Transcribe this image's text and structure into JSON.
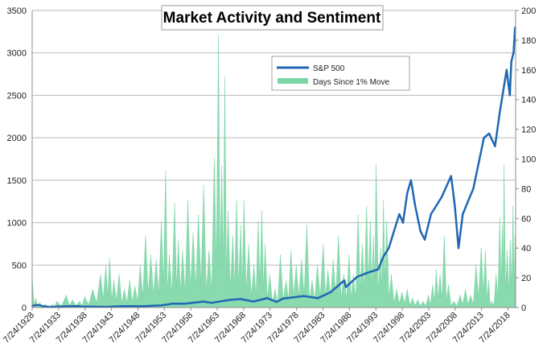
{
  "colors": {
    "sp500": "#1f67b4",
    "days_since": "#7dd6a6",
    "grid": "#b9b9b9",
    "axis": "#8c8c8c"
  },
  "chart_data": {
    "type": "line",
    "title": "Market Activity and Sentiment",
    "xlabel": "",
    "ylabel": "",
    "y2label": "",
    "x_range": [
      1928.56,
      2020.0
    ],
    "ylim": [
      0,
      3500
    ],
    "y2lim": [
      0,
      200
    ],
    "y_ticks": [
      "0",
      "500",
      "1000",
      "1500",
      "2000",
      "2500",
      "3000",
      "3500"
    ],
    "y2_ticks": [
      "0",
      "20",
      "40",
      "60",
      "80",
      "100",
      "120",
      "140",
      "160",
      "180",
      "200"
    ],
    "x_ticks": [
      "7/24/1928",
      "7/24/1933",
      "7/24/1938",
      "7/24/1943",
      "7/24/1948",
      "7/24/1953",
      "7/24/1958",
      "7/24/1963",
      "7/24/1968",
      "7/24/1973",
      "7/24/1978",
      "7/24/1983",
      "7/24/1988",
      "7/24/1993",
      "7/24/1998",
      "7/24/2003",
      "7/24/2008",
      "7/24/2013",
      "7/24/2018"
    ],
    "legend": {
      "position": "top-center",
      "entries": [
        "S&P 500",
        "Days Since 1% Move"
      ]
    },
    "grid": true,
    "series": [
      {
        "name": "S&P 500",
        "type": "line",
        "axis": "left",
        "x": [
          1928.56,
          1929.7,
          1931,
          1932.5,
          1933,
          1937,
          1938,
          1942.3,
          1946,
          1949.5,
          1953,
          1955,
          1957.5,
          1961,
          1962.5,
          1966,
          1968,
          1970.4,
          1973,
          1974.8,
          1976,
          1980,
          1982.6,
          1985,
          1987.6,
          1987.9,
          1990,
          1992,
          1994,
          1995,
          1996,
          1997,
          1998,
          1998.7,
          1999.5,
          2000.2,
          2001,
          2002,
          2002.8,
          2004,
          2005,
          2006,
          2007.8,
          2008.5,
          2009.2,
          2010,
          2011,
          2012,
          2013,
          2014,
          2015,
          2016.1,
          2017,
          2018.3,
          2018.9,
          2019.2,
          2019.6,
          2019.9
        ],
        "values": [
          20,
          31,
          10,
          5,
          10,
          18,
          11,
          8,
          17,
          15,
          25,
          45,
          45,
          70,
          55,
          90,
          100,
          70,
          110,
          65,
          105,
          135,
          110,
          180,
          320,
          240,
          360,
          410,
          450,
          600,
          700,
          900,
          1100,
          1000,
          1350,
          1500,
          1200,
          900,
          800,
          1100,
          1200,
          1300,
          1550,
          1200,
          700,
          1100,
          1250,
          1400,
          1700,
          2000,
          2050,
          1900,
          2300,
          2800,
          2500,
          2900,
          3000,
          3300
        ]
      },
      {
        "name": "Days Since 1% Move",
        "type": "area",
        "axis": "right",
        "x": [
          1928.6,
          1929.2,
          1930,
          1931,
          1932.5,
          1933.2,
          1935,
          1936.2,
          1937.5,
          1938.5,
          1940,
          1941.5,
          1942.5,
          1943.2,
          1944,
          1945,
          1946,
          1947,
          1948,
          1949,
          1950,
          1951,
          1952,
          1953,
          1953.8,
          1954.5,
          1955.5,
          1956.2,
          1957,
          1958,
          1959,
          1960,
          1961,
          1962,
          1963,
          1963.8,
          1964.4,
          1965,
          1965.6,
          1966.5,
          1967.2,
          1968,
          1968.6,
          1969.5,
          1970.5,
          1971.3,
          1972,
          1972.6,
          1973.5,
          1974.5,
          1975.5,
          1976.6,
          1977.5,
          1978.5,
          1979.5,
          1980.5,
          1981.5,
          1982.5,
          1983.6,
          1984.5,
          1985.5,
          1986.5,
          1987.5,
          1988.5,
          1989.3,
          1990.2,
          1991,
          1991.8,
          1992.5,
          1993.1,
          1993.6,
          1994.5,
          1995,
          1995.6,
          1996.5,
          1997.5,
          1998.5,
          1999.5,
          2000.5,
          2001.5,
          2002.5,
          2003.5,
          2004.3,
          2005,
          2005.7,
          2006.5,
          2007.3,
          2008.3,
          2009.5,
          2010.5,
          2011.5,
          2012.5,
          2013.5,
          2014.3,
          2014.9,
          2015.5,
          2016.3,
          2017,
          2017.5,
          2017.8,
          2018.4,
          2019,
          2019.5,
          2019.9
        ],
        "values": [
          18,
          6,
          3,
          2,
          2,
          4,
          8,
          5,
          4,
          7,
          12,
          22,
          28,
          33,
          18,
          22,
          12,
          18,
          14,
          28,
          48,
          35,
          32,
          58,
          92,
          35,
          70,
          45,
          38,
          72,
          50,
          62,
          82,
          38,
          100,
          183,
          95,
          155,
          65,
          48,
          72,
          55,
          72,
          42,
          28,
          58,
          65,
          42,
          22,
          12,
          35,
          18,
          38,
          28,
          32,
          55,
          18,
          28,
          42,
          25,
          32,
          48,
          22,
          35,
          22,
          62,
          42,
          68,
          58,
          48,
          96,
          40,
          72,
          58,
          22,
          12,
          10,
          12,
          6,
          5,
          4,
          8,
          15,
          25,
          22,
          48,
          15,
          4,
          8,
          12,
          8,
          28,
          40,
          38,
          18,
          4,
          22,
          60,
          55,
          96,
          38,
          45,
          68,
          48
        ]
      }
    ]
  }
}
